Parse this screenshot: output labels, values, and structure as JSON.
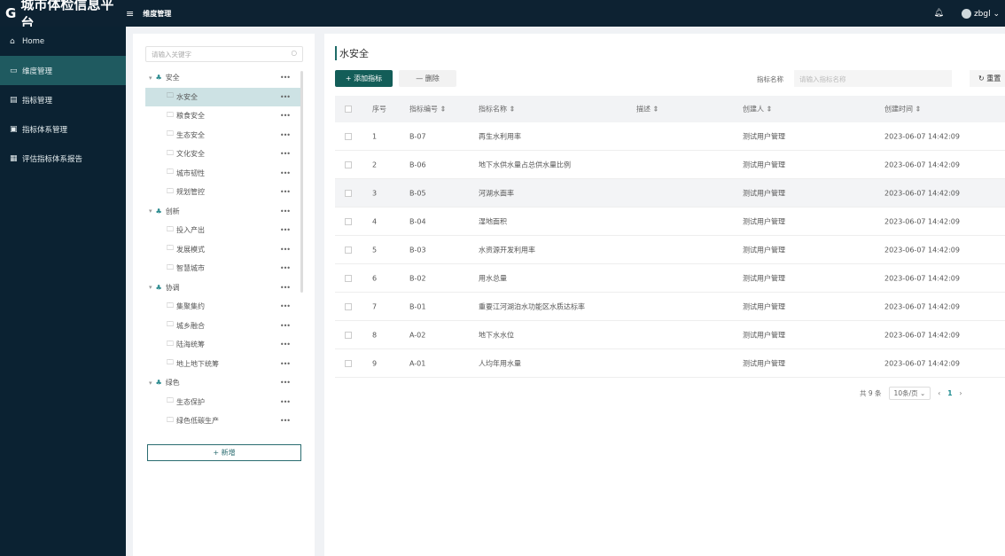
{
  "header": {
    "title": "城市体检信息平台",
    "breadcrumb": "维度管理",
    "user": "zbgl"
  },
  "sidebar": {
    "items": [
      {
        "label": "Home",
        "icon": "home-icon"
      },
      {
        "label": "维度管理",
        "icon": "dimension-icon",
        "active": true
      },
      {
        "label": "指标管理",
        "icon": "indicator-icon"
      },
      {
        "label": "指标体系管理",
        "icon": "system-icon"
      },
      {
        "label": "评估指标体系报告",
        "icon": "report-icon"
      }
    ]
  },
  "tree": {
    "search_placeholder": "请输入关键字",
    "add_label": "+ 新增",
    "nodes": [
      {
        "label": "安全",
        "level": 0
      },
      {
        "label": "水安全",
        "level": 1,
        "selected": true
      },
      {
        "label": "粮食安全",
        "level": 1
      },
      {
        "label": "生态安全",
        "level": 1
      },
      {
        "label": "文化安全",
        "level": 1
      },
      {
        "label": "城市韧性",
        "level": 1
      },
      {
        "label": "规划管控",
        "level": 1
      },
      {
        "label": "创新",
        "level": 0
      },
      {
        "label": "投入产出",
        "level": 1
      },
      {
        "label": "发展模式",
        "level": 1
      },
      {
        "label": "智慧城市",
        "level": 1
      },
      {
        "label": "协调",
        "level": 0
      },
      {
        "label": "集聚集约",
        "level": 1
      },
      {
        "label": "城乡融合",
        "level": 1
      },
      {
        "label": "陆海统筹",
        "level": 1
      },
      {
        "label": "地上地下统筹",
        "level": 1
      },
      {
        "label": "绿色",
        "level": 0
      },
      {
        "label": "生态保护",
        "level": 1
      },
      {
        "label": "绿色低碳生产",
        "level": 1
      }
    ]
  },
  "main": {
    "title": "水安全",
    "add_label": "+ 添加指标",
    "delete_label": "— 删除",
    "filter_label": "指标名称",
    "filter_placeholder": "请输入指标名称",
    "reset_label": "重置",
    "columns": [
      "序号",
      "指标编号 ⇕",
      "指标名称 ⇕",
      "描述 ⇕",
      "创建人 ⇕",
      "创建时间 ⇕"
    ],
    "rows": [
      [
        "1",
        "B-07",
        "再生水利用率",
        "",
        "测试用户管理",
        "2023-06-07 14:42:09"
      ],
      [
        "2",
        "B-06",
        "地下水供水量占总供水量比例",
        "",
        "测试用户管理",
        "2023-06-07 14:42:09"
      ],
      [
        "3",
        "B-05",
        "河湖水面率",
        "",
        "测试用户管理",
        "2023-06-07 14:42:09"
      ],
      [
        "4",
        "B-04",
        "湿地面积",
        "",
        "测试用户管理",
        "2023-06-07 14:42:09"
      ],
      [
        "5",
        "B-03",
        "水资源开发利用率",
        "",
        "测试用户管理",
        "2023-06-07 14:42:09"
      ],
      [
        "6",
        "B-02",
        "用水总量",
        "",
        "测试用户管理",
        "2023-06-07 14:42:09"
      ],
      [
        "7",
        "B-01",
        "重要江河湖泊水功能区水质达标率",
        "",
        "测试用户管理",
        "2023-06-07 14:42:09"
      ],
      [
        "8",
        "A-02",
        "地下水水位",
        "",
        "测试用户管理",
        "2023-06-07 14:42:09"
      ],
      [
        "9",
        "A-01",
        "人均年用水量",
        "",
        "测试用户管理",
        "2023-06-07 14:42:09"
      ]
    ],
    "pagination": {
      "total": "共 9 条",
      "page_size": "10条/页",
      "current": "1"
    }
  }
}
